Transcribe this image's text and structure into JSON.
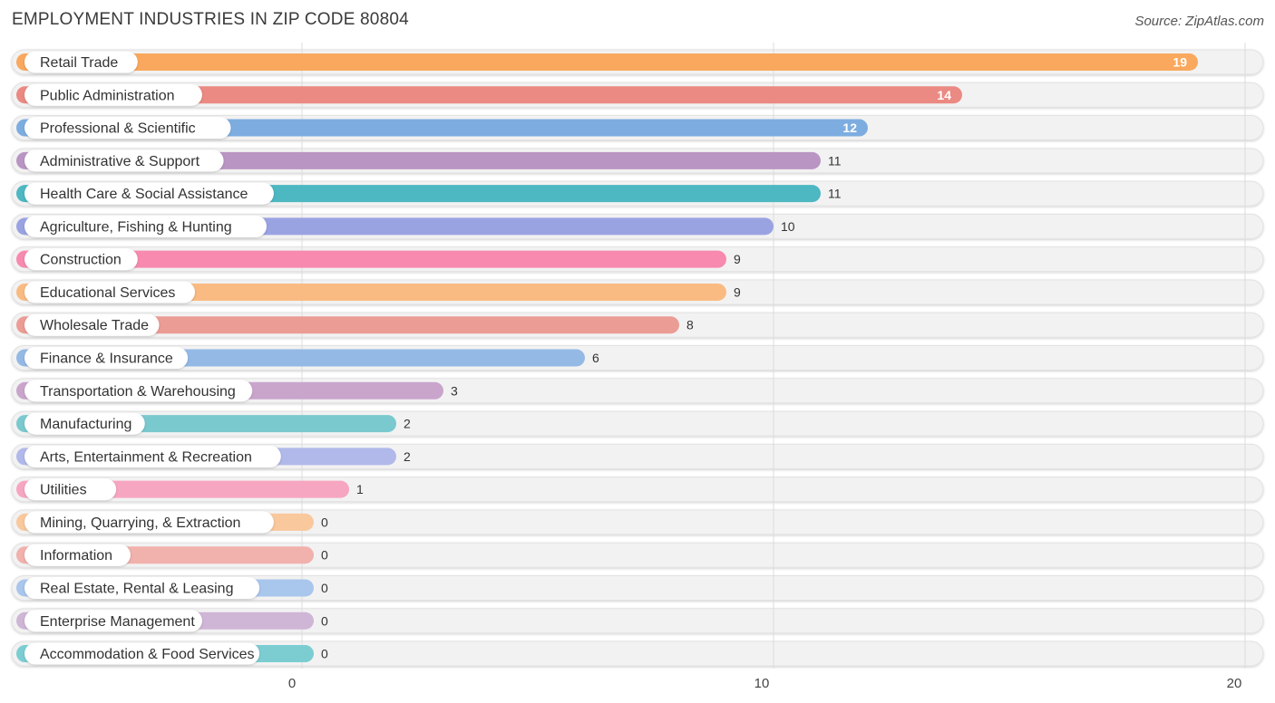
{
  "header": {
    "title": "EMPLOYMENT INDUSTRIES IN ZIP CODE 80804",
    "source": "Source: ZipAtlas.com"
  },
  "chart_data": {
    "type": "bar",
    "orientation": "horizontal",
    "title": "EMPLOYMENT INDUSTRIES IN ZIP CODE 80804",
    "xlim": [
      0,
      20
    ],
    "xticks": [
      0,
      10,
      20
    ],
    "grid": true,
    "categories": [
      "Retail Trade",
      "Public Administration",
      "Professional & Scientific",
      "Administrative & Support",
      "Health Care & Social Assistance",
      "Agriculture, Fishing & Hunting",
      "Construction",
      "Educational Services",
      "Wholesale Trade",
      "Finance & Insurance",
      "Transportation & Warehousing",
      "Manufacturing",
      "Arts, Entertainment & Recreation",
      "Utilities",
      "Mining, Quarrying, & Extraction",
      "Information",
      "Real Estate, Rental & Leasing",
      "Enterprise Management",
      "Accommodation & Food Services"
    ],
    "values": [
      19,
      14,
      12,
      11,
      11,
      10,
      9,
      9,
      8,
      6,
      3,
      2,
      2,
      1,
      0,
      0,
      0,
      0,
      0
    ],
    "colors": [
      "#f9a85d",
      "#ea8a83",
      "#7dade0",
      "#b995c3",
      "#4db7c2",
      "#9aa3e2",
      "#f78aae",
      "#f9bb82",
      "#eb9c95",
      "#94b9e5",
      "#c9a5cc",
      "#7ac9cf",
      "#b1b8ea",
      "#f6a6c0",
      "#f9c89c",
      "#f1b1ac",
      "#a9c6ec",
      "#cfb5d6",
      "#7bcdd2"
    ]
  }
}
